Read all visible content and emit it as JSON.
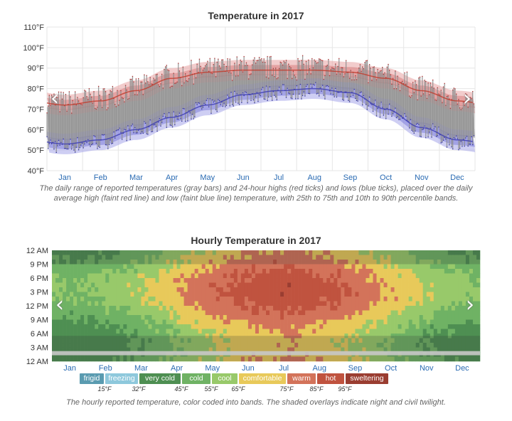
{
  "chart_data": [
    {
      "type": "range",
      "title": "Temperature in 2017",
      "y_unit": "°F",
      "ylim": [
        40,
        110
      ],
      "yticks": [
        "40°F",
        "50°F",
        "60°F",
        "70°F",
        "80°F",
        "90°F",
        "100°F",
        "110°F"
      ],
      "months": [
        "Jan",
        "Feb",
        "Mar",
        "Apr",
        "May",
        "Jun",
        "Jul",
        "Aug",
        "Sep",
        "Oct",
        "Nov",
        "Dec"
      ],
      "series": [
        {
          "name": "daily average high",
          "values": [
            72,
            74,
            79,
            85,
            88,
            89,
            89,
            89,
            88,
            85,
            79,
            74
          ]
        },
        {
          "name": "daily average low",
          "values": [
            53,
            55,
            60,
            66,
            72,
            77,
            79,
            80,
            78,
            70,
            61,
            55
          ]
        }
      ],
      "caption": "The daily range of reported temperatures (gray bars) and 24-hour highs (red ticks) and lows (blue ticks), placed over the daily average high (faint red line) and low (faint blue line) temperature, with 25th to 75th and 10th to 90th percentile bands.",
      "grid": true,
      "colors": {
        "band_gray": "#9e9e9e",
        "high": "#c0392b",
        "low": "#3b3bb3",
        "high_band": "#e8a0a0",
        "low_band": "#a0a0e8"
      }
    },
    {
      "type": "heatmap",
      "title": "Hourly Temperature in 2017",
      "yticks": [
        "12 AM",
        "9 PM",
        "6 PM",
        "3 PM",
        "12 PM",
        "9 AM",
        "6 AM",
        "3 AM",
        "12 AM"
      ],
      "months": [
        "Jan",
        "Feb",
        "Mar",
        "Apr",
        "May",
        "Jun",
        "Jul",
        "Aug",
        "Sep",
        "Oct",
        "Nov",
        "Dec"
      ],
      "legend": [
        {
          "label": "frigid",
          "color": "#5a9bb0"
        },
        {
          "label": "freezing",
          "color": "#8ec8dc"
        },
        {
          "label": "very cold",
          "color": "#4e8f52"
        },
        {
          "label": "cold",
          "color": "#6fb264"
        },
        {
          "label": "cool",
          "color": "#98c96a"
        },
        {
          "label": "comfortable",
          "color": "#e8c95a"
        },
        {
          "label": "warm",
          "color": "#d3735a"
        },
        {
          "label": "hot",
          "color": "#c0533f"
        },
        {
          "label": "sweltering",
          "color": "#9a3d31"
        }
      ],
      "thresholds": [
        "15°F",
        "32°F",
        "45°F",
        "55°F",
        "65°F",
        "75°F",
        "85°F",
        "95°F"
      ],
      "caption": "The hourly reported temperature, color coded into bands. The shaded overlays indicate night and civil twilight."
    }
  ]
}
